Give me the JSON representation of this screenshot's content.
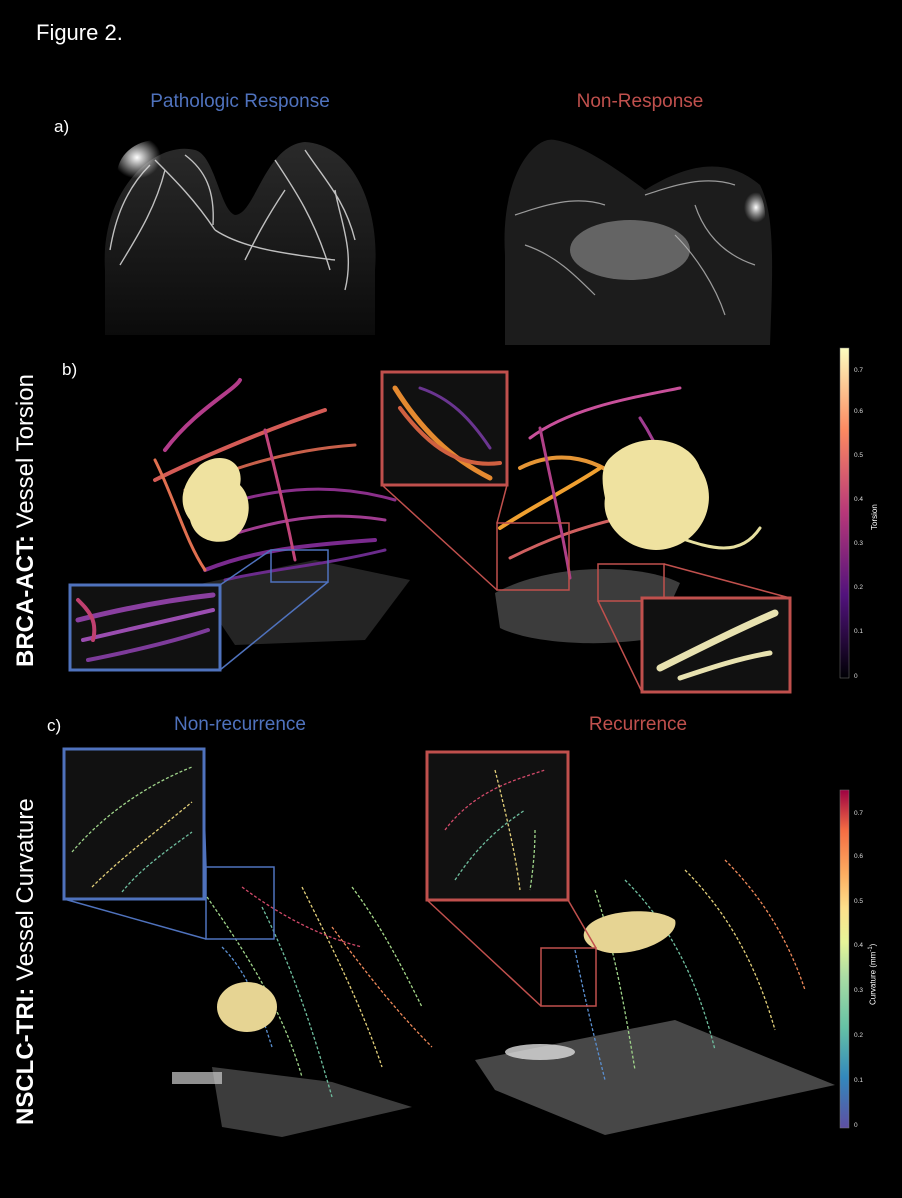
{
  "figure": {
    "title": "Figure 2."
  },
  "panels": {
    "a": "a)",
    "b": "b)",
    "c": "c)"
  },
  "rows": {
    "brca": {
      "bold": "BRCA-ACT:",
      "rest": " Vessel Torsion"
    },
    "nsclc": {
      "bold": "NSCLC-TRI:",
      "rest": " Vessel Curvature"
    }
  },
  "columns": {
    "brca_left": "Pathologic Response",
    "brca_right": "Non-Response",
    "nsclc_left": "Non-recurrence",
    "nsclc_right": "Recurrence"
  },
  "colorbars": {
    "torsion": {
      "label": "Torsion",
      "ticks": [
        "0.7",
        "0.6",
        "0.5",
        "0.4",
        "0.3",
        "0.2",
        "0.1",
        "0"
      ]
    },
    "curvature": {
      "label_main": "Curvature (mm",
      "label_sup": "-1",
      "label_end": ")",
      "ticks": [
        "0.7",
        "0.6",
        "0.5",
        "0.4",
        "0.3",
        "0.2",
        "0.1",
        "0"
      ]
    }
  },
  "colors": {
    "response_blue": "#4f72bd",
    "nonresponse_red": "#c0504d"
  }
}
